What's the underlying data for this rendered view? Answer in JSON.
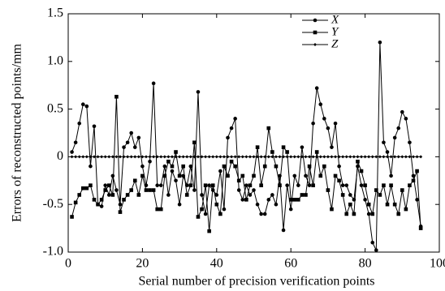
{
  "chart_data": {
    "type": "line",
    "xlabel": "Serial number of precision verification points",
    "ylabel": "Errors of reconstructed points/mm",
    "x": [
      1,
      2,
      3,
      4,
      5,
      6,
      7,
      8,
      9,
      10,
      11,
      12,
      13,
      14,
      15,
      16,
      17,
      18,
      19,
      20,
      21,
      22,
      23,
      24,
      25,
      26,
      27,
      28,
      29,
      30,
      31,
      32,
      33,
      34,
      35,
      36,
      37,
      38,
      39,
      40,
      41,
      42,
      43,
      44,
      45,
      46,
      47,
      48,
      49,
      50,
      51,
      52,
      53,
      54,
      55,
      56,
      57,
      58,
      59,
      60,
      61,
      62,
      63,
      64,
      65,
      66,
      67,
      68,
      69,
      70,
      71,
      72,
      73,
      74,
      75,
      76,
      77,
      78,
      79,
      80,
      81,
      82,
      83,
      84,
      85,
      86,
      87,
      88,
      89,
      90,
      91,
      92,
      93,
      94,
      95
    ],
    "series": [
      {
        "name": "X",
        "color": "#000000",
        "marker": "circle",
        "values": [
          0.05,
          0.15,
          0.35,
          0.55,
          0.53,
          -0.1,
          0.32,
          -0.5,
          -0.52,
          -0.3,
          -0.4,
          -0.2,
          -0.35,
          -0.5,
          0.1,
          0.15,
          0.25,
          0.1,
          0.2,
          -0.1,
          -0.3,
          -0.05,
          0.77,
          -0.3,
          -0.3,
          -0.1,
          -0.4,
          -0.15,
          -0.25,
          -0.5,
          -0.2,
          -0.3,
          -0.1,
          -0.35,
          0.68,
          -0.4,
          -0.6,
          -0.3,
          -0.35,
          -0.4,
          -0.15,
          -0.55,
          0.2,
          0.3,
          0.4,
          -0.35,
          -0.45,
          -0.3,
          -0.4,
          -0.35,
          -0.5,
          -0.6,
          -0.6,
          -0.45,
          -0.4,
          -0.5,
          -0.2,
          -0.77,
          -0.3,
          -0.55,
          -0.2,
          -0.3,
          0.1,
          -0.2,
          -0.3,
          0.35,
          0.72,
          0.55,
          0.4,
          0.3,
          0.1,
          0.35,
          -0.1,
          -0.3,
          -0.3,
          -0.4,
          -0.45,
          -0.1,
          -0.3,
          -0.45,
          -0.6,
          -0.9,
          -0.98,
          1.2,
          0.15,
          0.05,
          -0.2,
          0.2,
          0.3,
          0.47,
          0.4,
          0.15,
          -0.2,
          -0.45,
          -0.73
        ]
      },
      {
        "name": "Y",
        "color": "#000000",
        "marker": "square",
        "values": [
          -0.63,
          -0.48,
          -0.4,
          -0.33,
          -0.33,
          -0.3,
          -0.45,
          -0.5,
          -0.45,
          -0.35,
          -0.3,
          -0.4,
          0.63,
          -0.58,
          -0.45,
          -0.4,
          -0.35,
          -0.25,
          -0.4,
          -0.2,
          -0.35,
          -0.35,
          -0.35,
          -0.55,
          -0.55,
          -0.2,
          -0.05,
          -0.1,
          0.05,
          -0.2,
          -0.1,
          -0.4,
          -0.3,
          0.15,
          -0.63,
          -0.55,
          -0.3,
          -0.78,
          -0.3,
          -0.5,
          -0.6,
          -0.1,
          -0.2,
          -0.05,
          -0.1,
          -0.25,
          -0.2,
          -0.45,
          -0.3,
          -0.2,
          0.1,
          -0.3,
          -0.1,
          0.3,
          0.05,
          -0.1,
          -0.3,
          0.1,
          0.05,
          -0.45,
          -0.45,
          -0.45,
          -0.4,
          -0.4,
          -0.1,
          -0.3,
          0.05,
          -0.2,
          -0.1,
          -0.35,
          -0.55,
          -0.2,
          -0.25,
          -0.4,
          -0.6,
          -0.5,
          -0.6,
          -0.05,
          -0.15,
          -0.3,
          -0.5,
          -0.6,
          -0.35,
          -0.4,
          -0.3,
          -0.5,
          -0.3,
          -0.5,
          -0.6,
          -0.35,
          -0.55,
          -0.3,
          -0.25,
          -0.15,
          -0.75
        ]
      },
      {
        "name": "Z",
        "color": "#000000",
        "marker": "diamond",
        "values": [
          0,
          0,
          0,
          0,
          0,
          0,
          0,
          0,
          0,
          0,
          0,
          0,
          0,
          0,
          0,
          0,
          0,
          0,
          0,
          0,
          0,
          0,
          0,
          0,
          0,
          0,
          0,
          0,
          0,
          0,
          0,
          0,
          0,
          0,
          0,
          0,
          0,
          0,
          0,
          0,
          0,
          0,
          0,
          0,
          0,
          0,
          0,
          0,
          0,
          0,
          0,
          0,
          0,
          0,
          0,
          0,
          0,
          0,
          0,
          0,
          0,
          0,
          0,
          0,
          0,
          0,
          0,
          0,
          0,
          0,
          0,
          0,
          0,
          0,
          0,
          0,
          0,
          0,
          0,
          0,
          0,
          0,
          0,
          0,
          0,
          0,
          0,
          0,
          0,
          0,
          0,
          0,
          0,
          0,
          0
        ]
      }
    ],
    "xlim": [
      0,
      100
    ],
    "xticks": [
      0,
      20,
      40,
      60,
      80,
      100
    ],
    "ylim": [
      -1.0,
      1.5
    ],
    "yticks": [
      {
        "value": -1.0,
        "label": "-1.0"
      },
      -0.5,
      0,
      0.5,
      {
        "value": 1.0,
        "label": "1.0"
      },
      1.5
    ],
    "legend": "upper right",
    "grid": false
  }
}
